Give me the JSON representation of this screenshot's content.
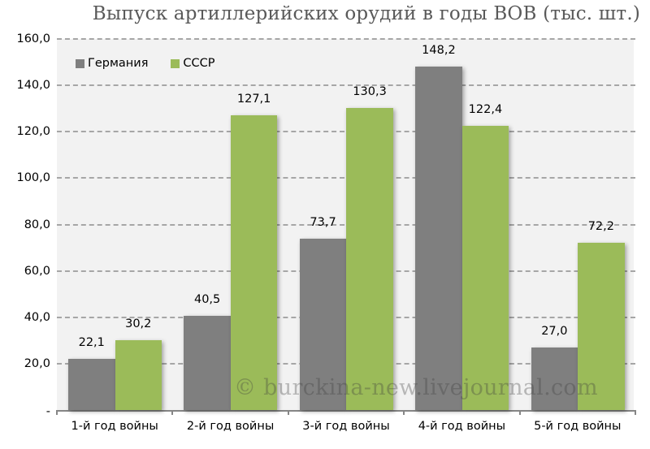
{
  "chart_data": {
    "type": "bar",
    "title": "Выпуск артиллерийских орудий в годы ВОВ (тыс. шт.)",
    "xlabel": "",
    "ylabel": "",
    "categories": [
      "1-й год войны",
      "2-й год войны",
      "3-й год войны",
      "4-й год войны",
      "5-й год войны"
    ],
    "series": [
      {
        "name": "Германия",
        "color": "#7f7f7f",
        "values": [
          22.1,
          40.5,
          73.7,
          148.2,
          27.0
        ],
        "labels": [
          "22,1",
          "40,5",
          "73,7",
          "148,2",
          "27,0"
        ]
      },
      {
        "name": "СССР",
        "color": "#9bbb59",
        "values": [
          30.2,
          127.1,
          130.3,
          122.4,
          72.2
        ],
        "labels": [
          "30,2",
          "127,1",
          "130,3",
          "122,4",
          "72,2"
        ]
      }
    ],
    "ylim": [
      0,
      160
    ],
    "yticks": [
      "-",
      "20,0",
      "40,0",
      "60,0",
      "80,0",
      "100,0",
      "120,0",
      "140,0",
      "160,0"
    ],
    "grid": true,
    "legend_position": "top-left inside"
  },
  "watermark": "© burckina-new.livejournal.com"
}
